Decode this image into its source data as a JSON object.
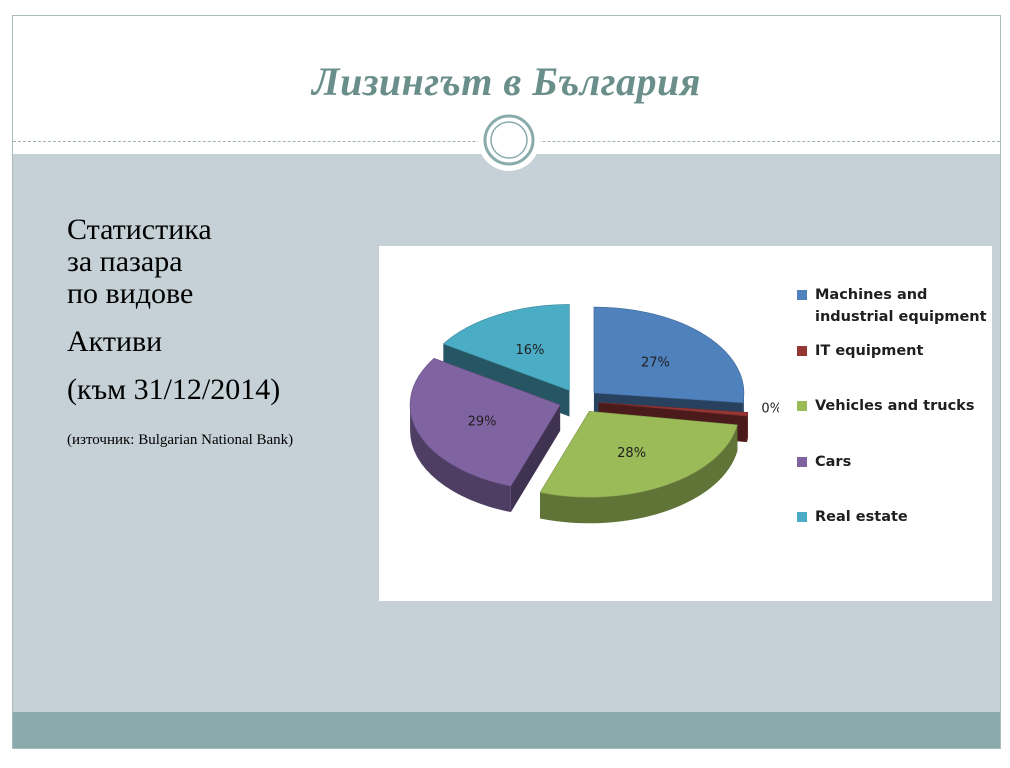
{
  "slide": {
    "title": "Лизингът в България",
    "text_lines": [
      "Статистика",
      "за пазара",
      "по видове",
      "Активи",
      "(към 31/12/2014)"
    ],
    "source": "(източник: Bulgarian National Bank)"
  },
  "chart_data": {
    "type": "pie",
    "title": "",
    "categories": [
      "Machines and industrial equipment",
      "IT equipment",
      "Vehicles and trucks",
      "Cars",
      "Real estate"
    ],
    "values": [
      27,
      0,
      28,
      29,
      16
    ],
    "labels": [
      "27%",
      "0%",
      "28%",
      "29%",
      "16%"
    ],
    "legend_position": "right",
    "exploded": true,
    "three_d": true,
    "colors": [
      "#4f81bd",
      "#943634",
      "#9bbb59",
      "#8064a2",
      "#4bacc6"
    ]
  }
}
